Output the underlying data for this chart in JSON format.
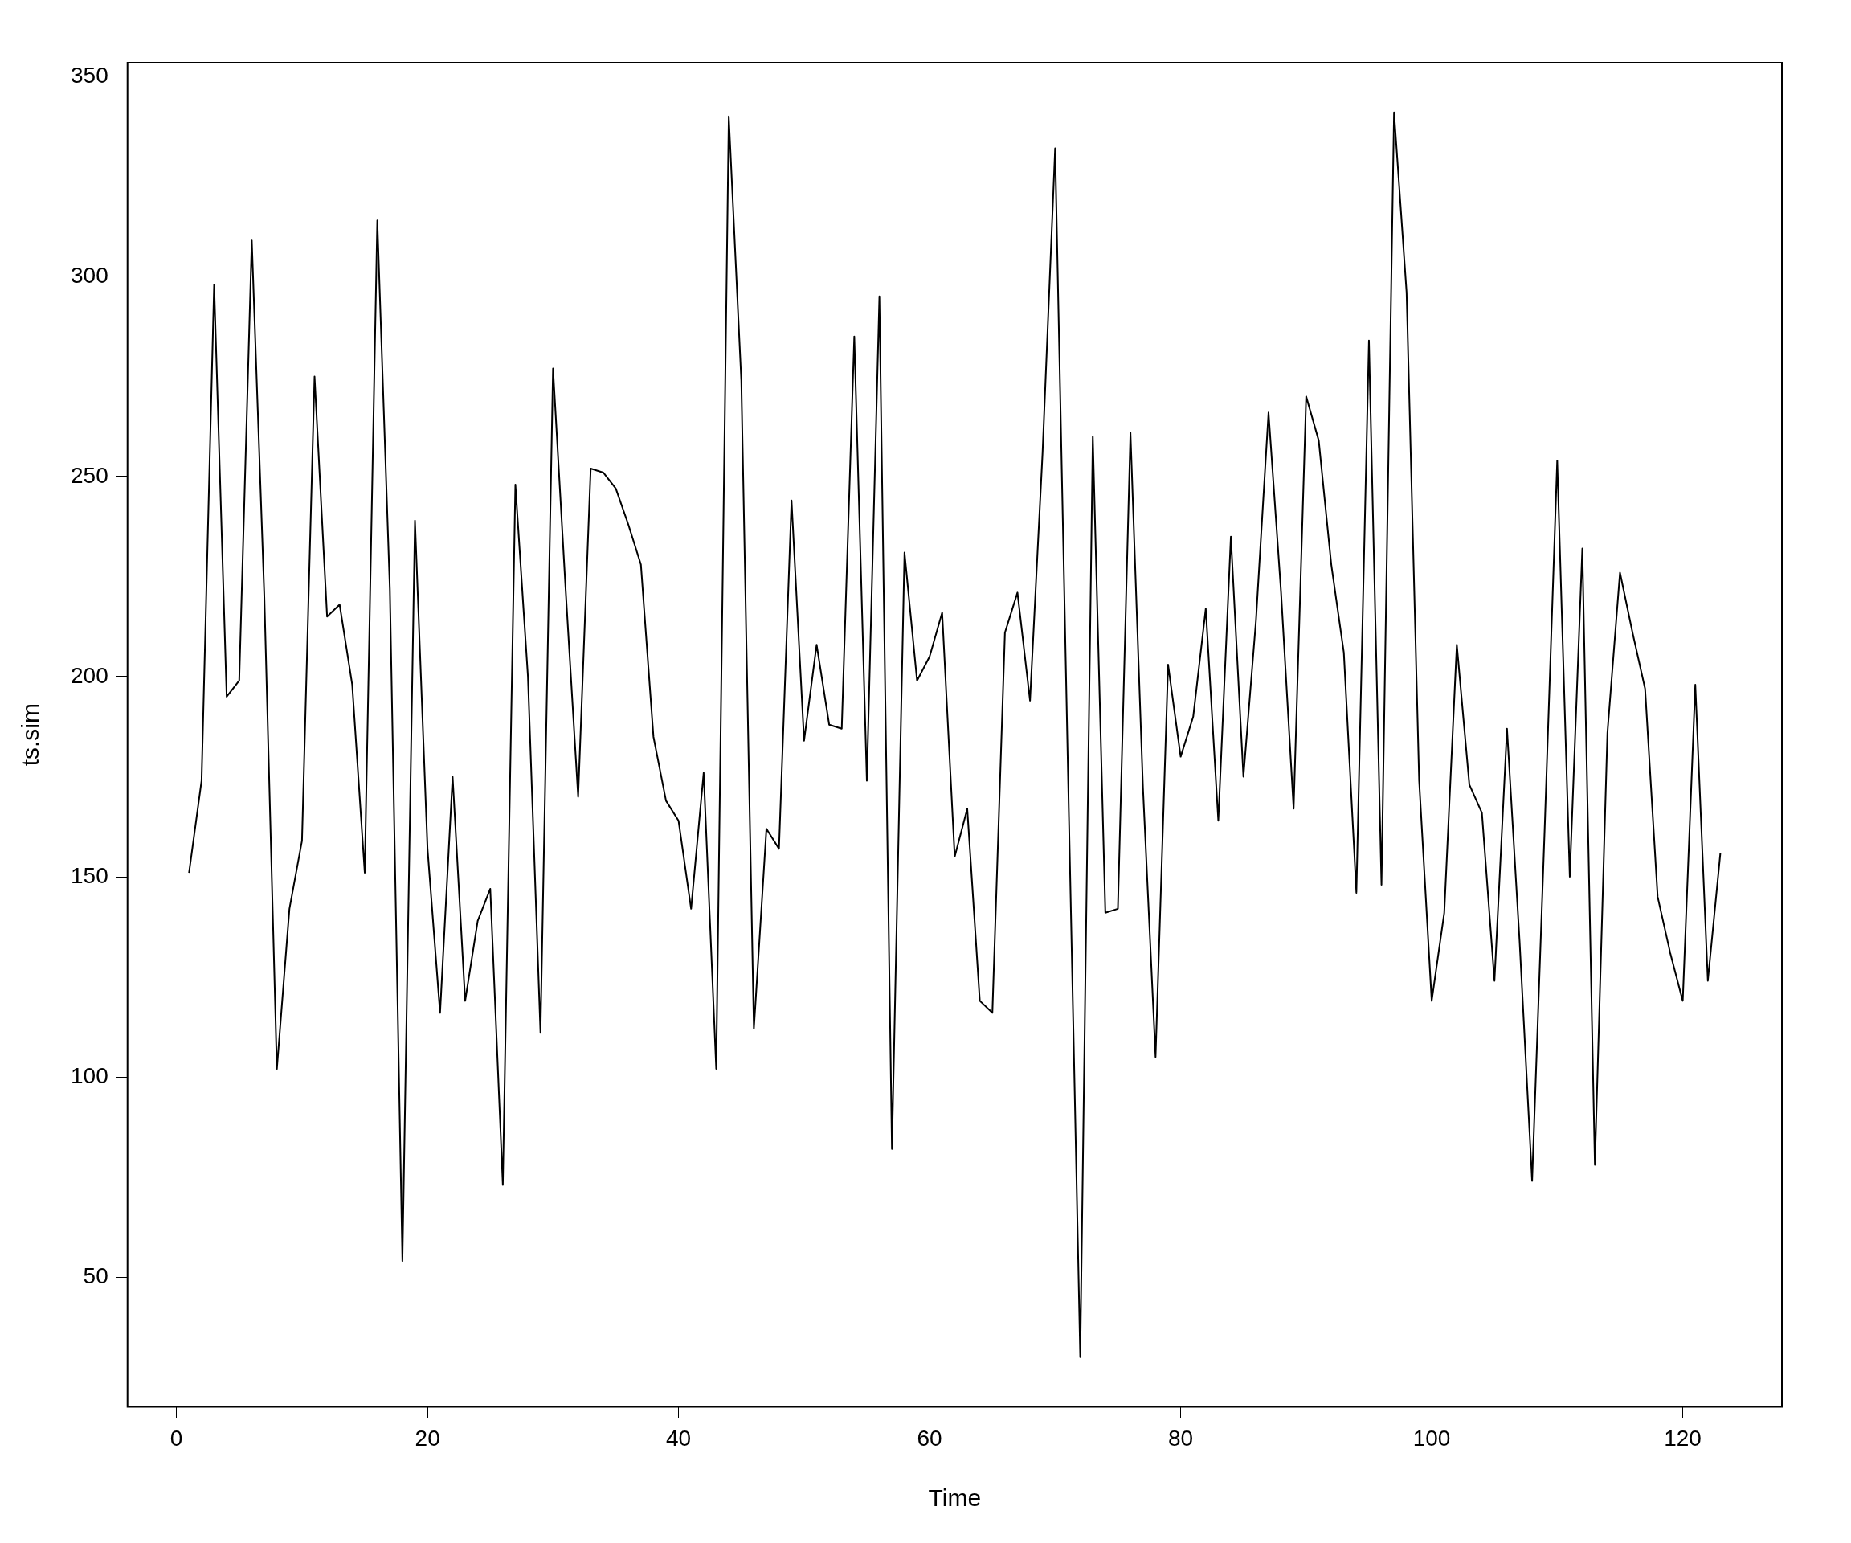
{
  "chart_data": {
    "type": "line",
    "xlabel": "Time",
    "ylabel": "ts.sim",
    "x": [
      1,
      2,
      3,
      4,
      5,
      6,
      7,
      8,
      9,
      10,
      11,
      12,
      13,
      14,
      15,
      16,
      17,
      18,
      19,
      20,
      21,
      22,
      23,
      24,
      25,
      26,
      27,
      28,
      29,
      30,
      31,
      32,
      33,
      34,
      35,
      36,
      37,
      38,
      39,
      40,
      41,
      42,
      43,
      44,
      45,
      46,
      47,
      48,
      49,
      50,
      51,
      52,
      53,
      54,
      55,
      56,
      57,
      58,
      59,
      60,
      61,
      62,
      63,
      64,
      65,
      66,
      67,
      68,
      69,
      70,
      71,
      72,
      73,
      74,
      75,
      76,
      77,
      78,
      79,
      80,
      81,
      82,
      83,
      84,
      85,
      86,
      87,
      88,
      89,
      90,
      91,
      92,
      93,
      94,
      95,
      96,
      97,
      98,
      99,
      100,
      101,
      102,
      103,
      104,
      105,
      106,
      107,
      108,
      109,
      110,
      111,
      112,
      113,
      114,
      115,
      116,
      117,
      118,
      119,
      120,
      121,
      122,
      123
    ],
    "series": [
      {
        "color": "#000000",
        "values": [
          151,
          174,
          298,
          195,
          199,
          309,
          220,
          102,
          142,
          159,
          275,
          215,
          218,
          198,
          151,
          314,
          222,
          54,
          239,
          157,
          116,
          175,
          119,
          139,
          147,
          73,
          248,
          200,
          111,
          277,
          222,
          170,
          252,
          251,
          247,
          238,
          228,
          185,
          169,
          164,
          142,
          176,
          102,
          340,
          274,
          112,
          162,
          157,
          244,
          184,
          208,
          188,
          187,
          285,
          174,
          295,
          82,
          231,
          199,
          205,
          216,
          155,
          167,
          119,
          116,
          211,
          221,
          194,
          256,
          332,
          180,
          30,
          260,
          141,
          142,
          261,
          172,
          105,
          203,
          180,
          190,
          217,
          164,
          235,
          175,
          214,
          266,
          221,
          167,
          270,
          259,
          228,
          206,
          146,
          284,
          148,
          341,
          296,
          174,
          119,
          141,
          208,
          173,
          166,
          124,
          187,
          134,
          74,
          162,
          254,
          150,
          232,
          78,
          186,
          226,
          211,
          197,
          145,
          131,
          119,
          198,
          124,
          156
        ]
      }
    ],
    "xlim": [
      -3.9,
      127.9
    ],
    "xticks": [
      0,
      20,
      40,
      60,
      80,
      100,
      120
    ],
    "ylim": [
      17.6,
      353.4
    ],
    "yticks": [
      50,
      100,
      150,
      200,
      250,
      300,
      350
    ],
    "grid": false,
    "legend": false,
    "marker": "none",
    "line_style": "solid"
  }
}
